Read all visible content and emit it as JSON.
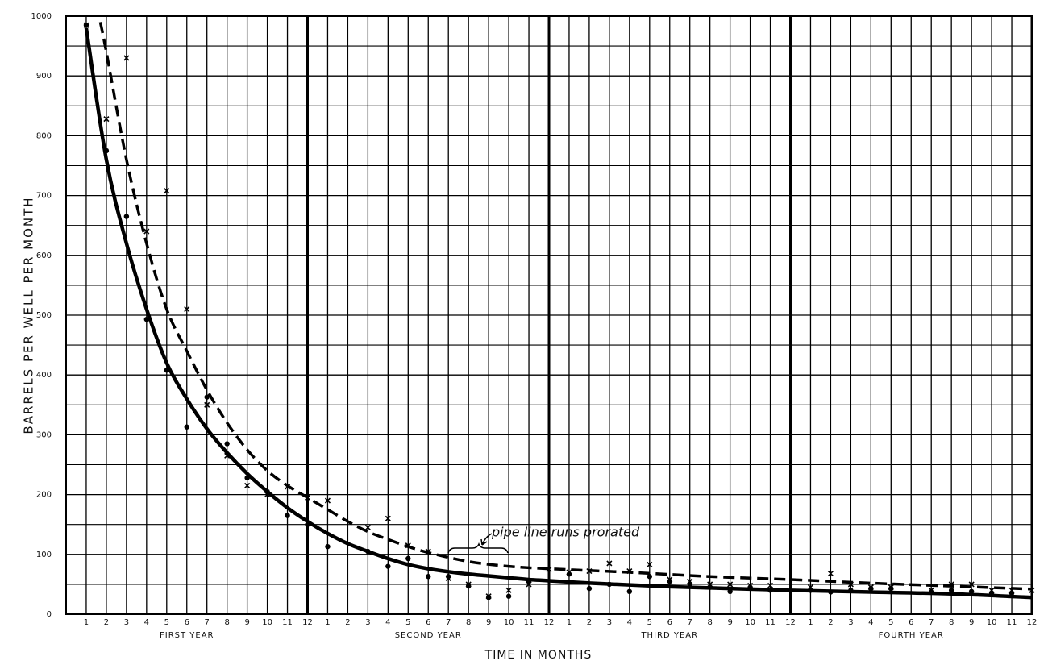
{
  "chart_data": {
    "type": "line",
    "y_label": "BARRELS PER WELL PER MONTH",
    "x_label": "TIME IN MONTHS",
    "year_labels": [
      "FIRST YEAR",
      "SECOND YEAR",
      "THIRD YEAR",
      "FOURTH YEAR"
    ],
    "annotation": "pipe line runs prorated",
    "xlim": [
      0,
      48
    ],
    "ylim": [
      0,
      1000
    ],
    "yticks": [
      0,
      100,
      200,
      300,
      400,
      500,
      600,
      700,
      800,
      900,
      1000
    ],
    "xticks": [
      1,
      2,
      3,
      4,
      5,
      6,
      7,
      8,
      9,
      10,
      11,
      12,
      {
        "value": 13,
        "label": "1"
      },
      {
        "value": 14,
        "label": "2"
      },
      {
        "value": 15,
        "label": "3"
      },
      {
        "value": 16,
        "label": "4"
      },
      {
        "value": 17,
        "label": "5"
      },
      {
        "value": 18,
        "label": "6"
      },
      {
        "value": 19,
        "label": "7"
      },
      {
        "value": 20,
        "label": "8"
      },
      {
        "value": 21,
        "label": "9"
      },
      {
        "value": 22,
        "label": "10"
      },
      {
        "value": 23,
        "label": "11"
      },
      {
        "value": 24,
        "label": "12"
      },
      {
        "value": 25,
        "label": "1"
      },
      {
        "value": 26,
        "label": "2"
      },
      {
        "value": 27,
        "label": "3"
      },
      {
        "value": 28,
        "label": "4"
      },
      {
        "value": 29,
        "label": "5"
      },
      {
        "value": 30,
        "label": "6"
      },
      {
        "value": 31,
        "label": "7"
      },
      {
        "value": 32,
        "label": "8"
      },
      {
        "value": 33,
        "label": "9"
      },
      {
        "value": 34,
        "label": "10"
      },
      {
        "value": 35,
        "label": "11"
      },
      {
        "value": 36,
        "label": "12"
      },
      {
        "value": 37,
        "label": "1"
      },
      {
        "value": 38,
        "label": "2"
      },
      {
        "value": 39,
        "label": "3"
      },
      {
        "value": 40,
        "label": "4"
      },
      {
        "value": 41,
        "label": "5"
      },
      {
        "value": 42,
        "label": "6"
      },
      {
        "value": 43,
        "label": "7"
      },
      {
        "value": 44,
        "label": "8"
      },
      {
        "value": 45,
        "label": "9"
      },
      {
        "value": 46,
        "label": "10"
      },
      {
        "value": 47,
        "label": "11"
      },
      {
        "value": 48,
        "label": "12"
      }
    ],
    "grid": true,
    "series": [
      {
        "type": "curve",
        "color": "#000000",
        "dash": false,
        "x": [
          1,
          2,
          3,
          4,
          5,
          6,
          7,
          8,
          9,
          10,
          11,
          12,
          13,
          14,
          15,
          16,
          17,
          18,
          19,
          20,
          21,
          22,
          23,
          24,
          26,
          28,
          30,
          32,
          34,
          36,
          40,
          44,
          48
        ],
        "values": [
          980,
          760,
          620,
          510,
          420,
          360,
          310,
          270,
          235,
          205,
          178,
          155,
          135,
          118,
          105,
          93,
          83,
          76,
          71,
          67,
          64,
          61,
          58,
          56,
          52,
          49,
          46,
          44,
          42,
          40,
          37,
          34,
          28
        ]
      },
      {
        "type": "curve",
        "color": "#000000",
        "dash": true,
        "x": [
          1.7,
          2,
          3,
          4,
          5,
          6,
          7,
          8,
          9,
          10,
          11,
          12,
          13,
          14,
          15,
          16,
          17,
          18,
          20,
          22,
          24,
          28,
          32,
          36,
          40,
          44,
          48
        ],
        "values": [
          990,
          940,
          760,
          620,
          510,
          440,
          375,
          320,
          275,
          240,
          215,
          195,
          175,
          155,
          138,
          125,
          113,
          103,
          88,
          80,
          76,
          70,
          63,
          58,
          52,
          47,
          42
        ]
      },
      {
        "type": "scatter",
        "marker": "dot",
        "color": "#000000",
        "x": [
          1,
          2,
          3,
          4,
          5,
          6,
          7,
          8,
          9,
          10,
          11,
          12,
          13,
          15,
          16,
          17,
          18,
          19,
          20,
          21,
          22,
          23,
          25,
          26,
          27,
          28,
          29,
          30,
          31,
          32,
          33,
          34,
          35,
          37,
          38,
          39,
          40,
          41,
          43,
          44,
          45,
          46,
          47
        ],
        "values": [
          985,
          775,
          665,
          493,
          408,
          313,
          363,
          285,
          228,
          205,
          165,
          150,
          113,
          105,
          80,
          93,
          63,
          63,
          47,
          28,
          30,
          55,
          67,
          43,
          50,
          38,
          63,
          55,
          50,
          45,
          38,
          45,
          40,
          40,
          37,
          40,
          43,
          43,
          37,
          40,
          38,
          35,
          35
        ]
      },
      {
        "type": "scatter",
        "marker": "x",
        "color": "#000000",
        "x": [
          1,
          2,
          3,
          4,
          5,
          6,
          7,
          8,
          9,
          10,
          11,
          12,
          13,
          15,
          16,
          17,
          18,
          19,
          20,
          21,
          22,
          23,
          24,
          25,
          26,
          27,
          28,
          29,
          30,
          31,
          32,
          33,
          34,
          35,
          37,
          38,
          39,
          40,
          41,
          43,
          44,
          45,
          46,
          47,
          48
        ],
        "values": [
          985,
          828,
          930,
          640,
          708,
          510,
          350,
          265,
          215,
          200,
          213,
          195,
          190,
          145,
          160,
          115,
          105,
          60,
          50,
          30,
          40,
          50,
          75,
          70,
          72,
          85,
          72,
          83,
          58,
          55,
          50,
          50,
          48,
          48,
          45,
          68,
          50,
          45,
          45,
          40,
          50,
          50,
          40,
          40,
          40
        ]
      }
    ]
  }
}
